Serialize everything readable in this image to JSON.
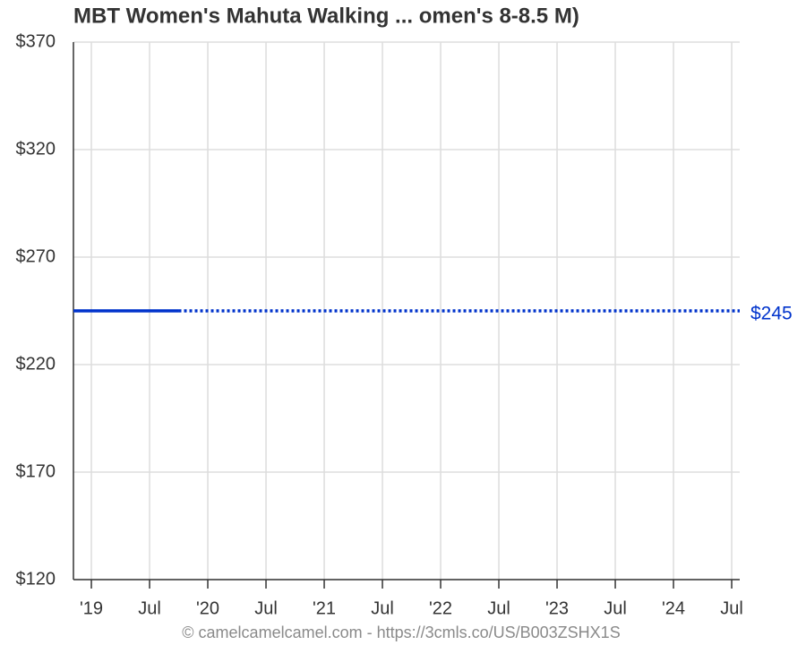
{
  "chart_data": {
    "type": "line",
    "title": "MBT Women's Mahuta Walking ... omen's 8-8.5 M)",
    "source": "© camelcamelcamel.com - https://3cmls.co/US/B003ZSHX1S",
    "series": [
      {
        "color": "#0033cc",
        "line_style": "solid",
        "x": [
          2018.846,
          2019.75
        ],
        "values": [
          245,
          245
        ]
      },
      {
        "color": "#0033cc",
        "line_style": "dotted",
        "x": [
          2019.75,
          2024.569
        ],
        "values": [
          245,
          245
        ],
        "value_labels": [
          null,
          "$245"
        ]
      }
    ],
    "xlim": [
      2018.846,
      2024.569
    ],
    "xticks": [
      {
        "value": 2019,
        "label": "'19"
      },
      {
        "value": 2019.5,
        "label": "Jul"
      },
      {
        "value": 2020,
        "label": "'20"
      },
      {
        "value": 2020.5,
        "label": "Jul"
      },
      {
        "value": 2021,
        "label": "'21"
      },
      {
        "value": 2021.5,
        "label": "Jul"
      },
      {
        "value": 2022,
        "label": "'22"
      },
      {
        "value": 2022.5,
        "label": "Jul"
      },
      {
        "value": 2023,
        "label": "'23"
      },
      {
        "value": 2023.5,
        "label": "Jul"
      },
      {
        "value": 2024,
        "label": "'24"
      },
      {
        "value": 2024.5,
        "label": "Jul"
      }
    ],
    "ylim": [
      120,
      370
    ],
    "yticks": [
      {
        "value": 120,
        "label": "$120"
      },
      {
        "value": 170,
        "label": "$170"
      },
      {
        "value": 220,
        "label": "$220"
      },
      {
        "value": 270,
        "label": "$270"
      },
      {
        "value": 320,
        "label": "$320"
      },
      {
        "value": 370,
        "label": "$370"
      }
    ],
    "grid": true
  }
}
